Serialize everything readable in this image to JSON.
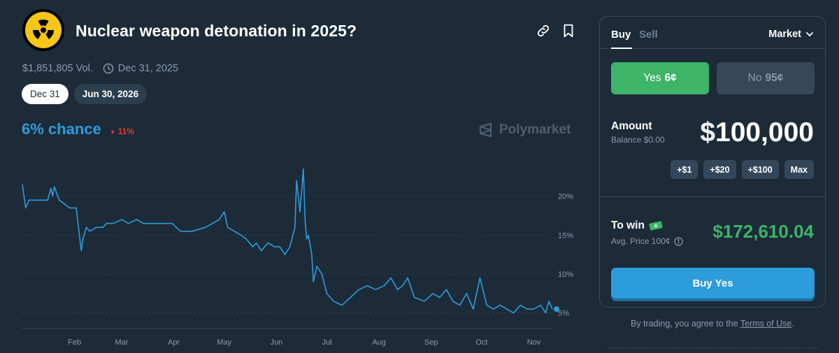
{
  "market": {
    "title": "Nuclear weapon detonation in 2025?",
    "volume": "$1,851,805 Vol.",
    "end_date": "Dec 31, 2025",
    "date_tabs": [
      {
        "label": "Dec 31",
        "active": true
      },
      {
        "label": "Jun 30, 2026",
        "active": false
      }
    ],
    "chance": "6% chance",
    "change": "11%",
    "change_direction": "down",
    "watermark": "Polymarket",
    "icons": {
      "logo": "radiation-icon",
      "link": "link-icon",
      "bookmark": "bookmark-icon",
      "clock": "clock-icon"
    }
  },
  "chart_data": {
    "type": "line",
    "title": "",
    "xlabel": "",
    "ylabel": "",
    "x_tick_labels": [
      "Feb",
      "Mar",
      "Apr",
      "May",
      "Jun",
      "Jul",
      "Aug",
      "Sep",
      "Oct",
      "Nov"
    ],
    "y_tick_labels": [
      "20%",
      "15%",
      "10%",
      "5%"
    ],
    "ylim": [
      3,
      25
    ],
    "grid": true,
    "line_color": "#2d9cdb",
    "series": [
      {
        "x": [
          "2025-01-01",
          "2025-01-03",
          "2025-01-05",
          "2025-01-08",
          "2025-01-12",
          "2025-01-16",
          "2025-01-18",
          "2025-01-19",
          "2025-01-20",
          "2025-01-23",
          "2025-01-26",
          "2025-01-29",
          "2025-02-02",
          "2025-02-05",
          "2025-02-06",
          "2025-02-08",
          "2025-02-10",
          "2025-02-14",
          "2025-02-18",
          "2025-02-20",
          "2025-02-24",
          "2025-03-01",
          "2025-03-05",
          "2025-03-10",
          "2025-03-14",
          "2025-03-16",
          "2025-03-20",
          "2025-03-25",
          "2025-03-31",
          "2025-04-05",
          "2025-04-12",
          "2025-04-20",
          "2025-04-28",
          "2025-05-01",
          "2025-05-03",
          "2025-05-07",
          "2025-05-11",
          "2025-05-14",
          "2025-05-16",
          "2025-05-18",
          "2025-05-20",
          "2025-05-23",
          "2025-05-27",
          "2025-05-31",
          "2025-06-03",
          "2025-06-06",
          "2025-06-09",
          "2025-06-12",
          "2025-06-13",
          "2025-06-15",
          "2025-06-17",
          "2025-06-18",
          "2025-06-19",
          "2025-06-20",
          "2025-06-22",
          "2025-06-23",
          "2025-06-25",
          "2025-06-28",
          "2025-07-01",
          "2025-07-05",
          "2025-07-10",
          "2025-07-15",
          "2025-07-20",
          "2025-07-25",
          "2025-07-30",
          "2025-08-04",
          "2025-08-08",
          "2025-08-12",
          "2025-08-15",
          "2025-08-18",
          "2025-08-22",
          "2025-08-28",
          "2025-09-02",
          "2025-09-06",
          "2025-09-10",
          "2025-09-14",
          "2025-09-18",
          "2025-09-22",
          "2025-09-26",
          "2025-09-30",
          "2025-10-04",
          "2025-10-08",
          "2025-10-12",
          "2025-10-16",
          "2025-10-20",
          "2025-10-24",
          "2025-10-28",
          "2025-11-01",
          "2025-11-05",
          "2025-11-08",
          "2025-11-10",
          "2025-11-12"
        ],
        "y": [
          21.5,
          18.5,
          19.5,
          19.5,
          19.5,
          19.5,
          21,
          20,
          21.2,
          19.5,
          19,
          18.5,
          18.5,
          13,
          14.5,
          16,
          15.5,
          16,
          16,
          16.5,
          16.5,
          17,
          16.5,
          17,
          16.5,
          16.5,
          16.5,
          16.5,
          16.5,
          15.5,
          15.5,
          16,
          17,
          18,
          16,
          15.5,
          15,
          14.5,
          14,
          13.5,
          14,
          13,
          14,
          13.5,
          13.5,
          12.5,
          13.5,
          16,
          22,
          18,
          23.5,
          17,
          14.5,
          15,
          12.5,
          9,
          11,
          10,
          7.5,
          6.5,
          6,
          7,
          8,
          8.5,
          8,
          8.5,
          9.5,
          8,
          8.5,
          9.5,
          7,
          6.5,
          7.5,
          7,
          8,
          6.5,
          6,
          7.5,
          5.5,
          9.5,
          6,
          5.5,
          6,
          5.5,
          5,
          6,
          5.5,
          5.5,
          6,
          5,
          6.5,
          5.5
        ]
      }
    ],
    "current_value": 5.5
  },
  "trade": {
    "tabs": [
      {
        "label": "Buy",
        "active": true
      },
      {
        "label": "Sell",
        "active": false
      }
    ],
    "order_type": "Market",
    "outcomes": [
      {
        "label": "Yes",
        "price": "6¢",
        "selected": true
      },
      {
        "label": "No",
        "price": "95¢",
        "selected": false
      }
    ],
    "amount_label": "Amount",
    "balance": "Balance $0.00",
    "amount_value": "$100,000",
    "quick_amounts": [
      "+$1",
      "+$20",
      "+$100",
      "Max"
    ],
    "to_win_label": "To win",
    "avg_price": "Avg. Price 100¢",
    "to_win_value": "$172,610.04",
    "buy_button": "Buy Yes",
    "terms_prefix": "By trading, you agree to the",
    "terms_link": "Terms of Use",
    "terms_suffix": "."
  }
}
